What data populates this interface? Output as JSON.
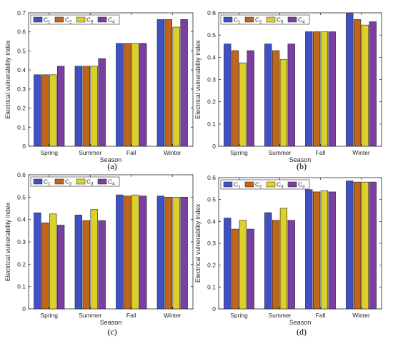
{
  "palette": {
    "C1": "#3f51c5",
    "C2": "#c0651a",
    "C3": "#dcd12a",
    "C4": "#7a3fa0"
  },
  "chart_data": [
    {
      "type": "bar",
      "panel_label": "(a)",
      "categories": [
        "Spring",
        "Summer",
        "Fall",
        "Winter"
      ],
      "series": [
        {
          "name": "C1",
          "values": [
            0.375,
            0.42,
            0.54,
            0.665
          ]
        },
        {
          "name": "C2",
          "values": [
            0.375,
            0.42,
            0.54,
            0.665
          ]
        },
        {
          "name": "C3",
          "values": [
            0.375,
            0.42,
            0.54,
            0.625
          ]
        },
        {
          "name": "C4",
          "values": [
            0.42,
            0.46,
            0.54,
            0.665
          ]
        }
      ],
      "xlabel": "Season",
      "ylabel": "Electrical vulnerability index",
      "ylim": [
        0,
        0.7
      ],
      "yticks": [
        "0",
        "0.1",
        "0.2",
        "0.3",
        "0.4",
        "0.5",
        "0.6",
        "0.7"
      ],
      "legend": "top-left",
      "grid": false
    },
    {
      "type": "bar",
      "panel_label": "(b)",
      "categories": [
        "Spring",
        "Summer",
        "Fall",
        "Winter"
      ],
      "series": [
        {
          "name": "C1",
          "values": [
            0.46,
            0.46,
            0.515,
            0.6
          ]
        },
        {
          "name": "C2",
          "values": [
            0.43,
            0.43,
            0.515,
            0.57
          ]
        },
        {
          "name": "C3",
          "values": [
            0.375,
            0.39,
            0.515,
            0.545
          ]
        },
        {
          "name": "C4",
          "values": [
            0.43,
            0.46,
            0.515,
            0.56
          ]
        }
      ],
      "xlabel": "Season",
      "ylabel": "Electrical vulnerability index",
      "ylim": [
        0,
        0.6
      ],
      "yticks": [
        "0",
        "0.1",
        "0.2",
        "0.3",
        "0.4",
        "0.5",
        "0.6"
      ],
      "legend": "top-left",
      "grid": false
    },
    {
      "type": "bar",
      "panel_label": "(c)",
      "categories": [
        "Spring",
        "Summer",
        "Fall",
        "Winter"
      ],
      "series": [
        {
          "name": "C1",
          "values": [
            0.43,
            0.42,
            0.51,
            0.505
          ]
        },
        {
          "name": "C2",
          "values": [
            0.385,
            0.395,
            0.505,
            0.5
          ]
        },
        {
          "name": "C3",
          "values": [
            0.425,
            0.445,
            0.51,
            0.5
          ]
        },
        {
          "name": "C4",
          "values": [
            0.375,
            0.395,
            0.505,
            0.5
          ]
        }
      ],
      "xlabel": "Season",
      "ylabel": "Electrical vulnerability index",
      "ylim": [
        0,
        0.6
      ],
      "yticks": [
        "0",
        "0.1",
        "0.2",
        "0.3",
        "0.4",
        "0.5",
        "0.6"
      ],
      "legend": "top-left",
      "grid": false
    },
    {
      "type": "bar",
      "panel_label": "(d)",
      "categories": [
        "Spring",
        "Summer",
        "Fall",
        "Winter"
      ],
      "series": [
        {
          "name": "C1",
          "values": [
            0.415,
            0.44,
            0.545,
            0.585
          ]
        },
        {
          "name": "C2",
          "values": [
            0.365,
            0.405,
            0.535,
            0.58
          ]
        },
        {
          "name": "C3",
          "values": [
            0.405,
            0.46,
            0.54,
            0.58
          ]
        },
        {
          "name": "C4",
          "values": [
            0.365,
            0.405,
            0.535,
            0.58
          ]
        }
      ],
      "xlabel": "Season",
      "ylabel": "Electrical vulnerability index",
      "ylim": [
        0,
        0.6
      ],
      "yticks": [
        "0",
        "0.1",
        "0.2",
        "0.3",
        "0.4",
        "0.5",
        "0.6"
      ],
      "legend": "top-left",
      "grid": false
    }
  ]
}
